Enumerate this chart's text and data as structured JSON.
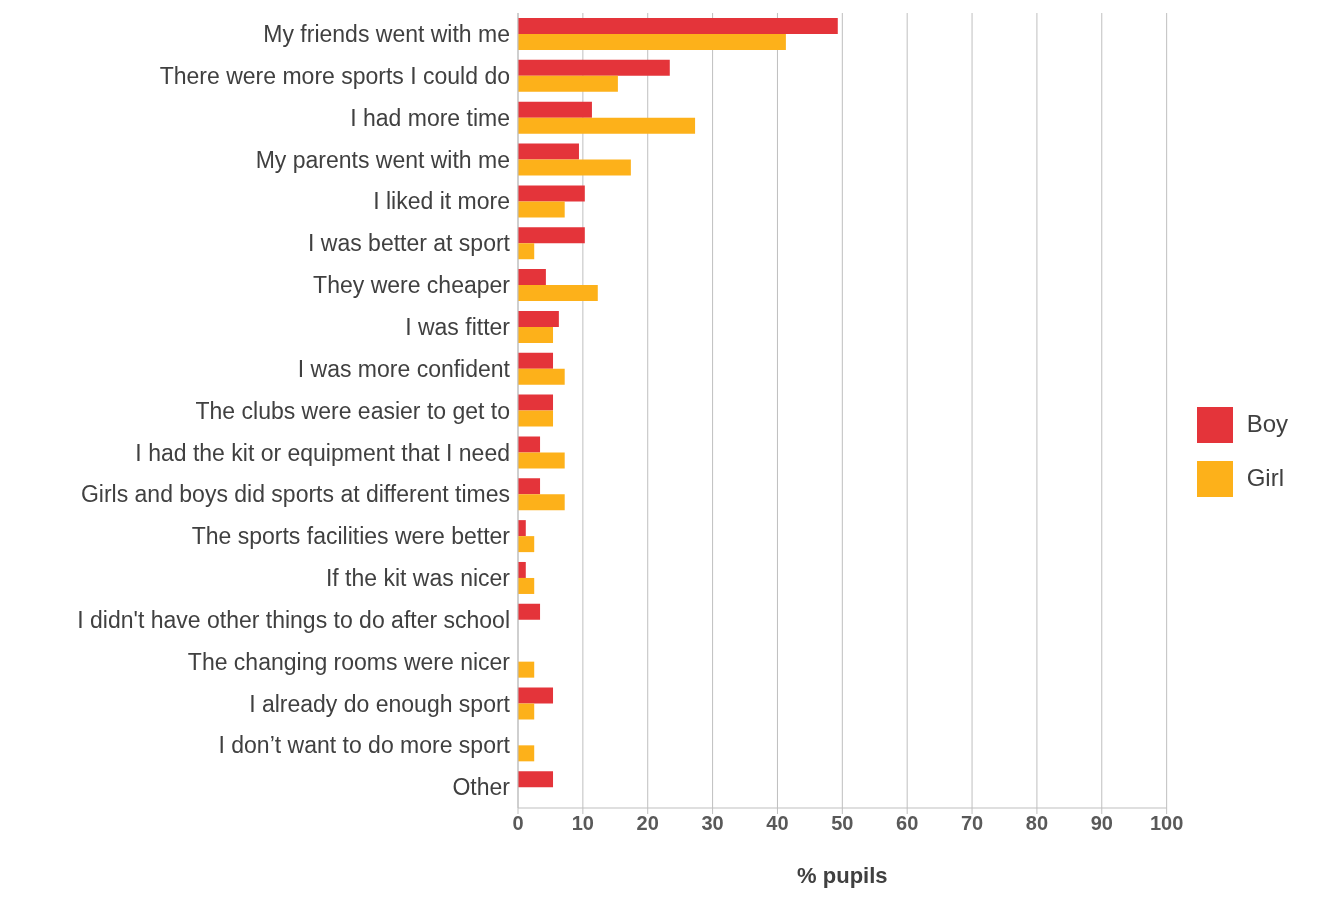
{
  "chart_data": {
    "type": "bar",
    "orientation": "horizontal",
    "xlabel": "% pupils",
    "categories": [
      "My friends went with me",
      "There were more sports I could do",
      "I had more time",
      "My parents went with me",
      "I liked it more",
      "I was better at sport",
      "They were cheaper",
      "I was fitter",
      "I was more confident",
      "The clubs were easier to get to",
      "I had the kit or equipment that I need",
      "Girls and boys did sports at different times",
      "The sports facilities were better",
      "If the kit was nicer",
      "I didn't have other things to do after school",
      "The changing rooms were nicer",
      "I already do enough sport",
      "I don’t want to do more sport",
      "Other"
    ],
    "series": [
      {
        "name": "Boy",
        "color": "#e4343a",
        "values": [
          49.3,
          23.4,
          11.4,
          9.4,
          10.3,
          10.3,
          4.3,
          6.3,
          5.4,
          5.4,
          3.4,
          3.4,
          1.2,
          1.2,
          3.4,
          0,
          5.4,
          0,
          5.4
        ]
      },
      {
        "name": "Girl",
        "color": "#fdb11a",
        "values": [
          41.3,
          15.4,
          27.3,
          17.4,
          7.2,
          2.5,
          12.3,
          5.4,
          7.2,
          5.4,
          7.2,
          7.2,
          2.5,
          2.5,
          0,
          2.5,
          2.5,
          2.5,
          0
        ]
      }
    ],
    "xlim": [
      0,
      100
    ],
    "xticks": [
      0,
      10,
      20,
      30,
      40,
      50,
      60,
      70,
      80,
      90,
      100
    ],
    "grid": "x",
    "legend": "right"
  }
}
